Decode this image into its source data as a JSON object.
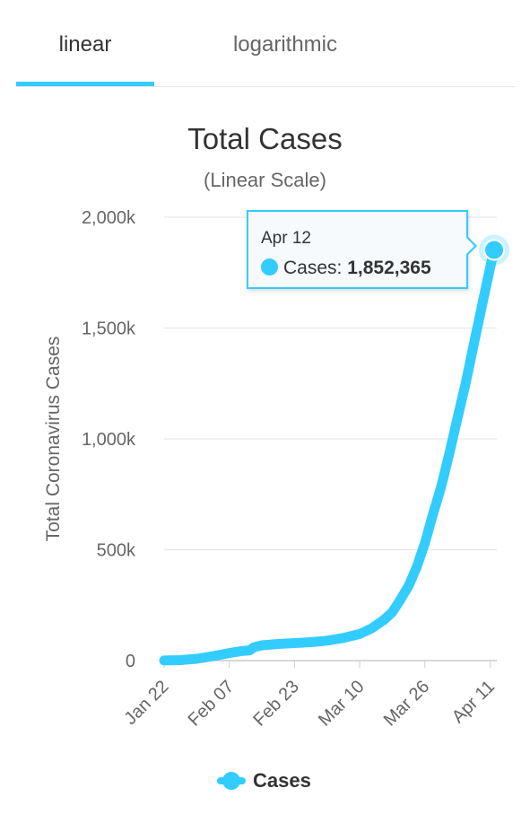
{
  "tabs": [
    {
      "label": "linear",
      "active": true
    },
    {
      "label": "logarithmic",
      "active": false
    }
  ],
  "tooltip": {
    "date": "Apr 12",
    "series_label": "Cases: ",
    "value": "1,852,365"
  },
  "legend": {
    "label": "Cases"
  },
  "colors": {
    "accent": "#33ccff",
    "grid": "#e6e6e6",
    "text": "#333333",
    "muted": "#666666"
  },
  "chart_data": {
    "type": "line",
    "title": "Total Cases",
    "subtitle": "(Linear Scale)",
    "xlabel": "",
    "ylabel": "Total Coronavirus Cases",
    "ylim": [
      0,
      2000000
    ],
    "y_ticks": [
      0,
      500000,
      1000000,
      1500000,
      2000000
    ],
    "y_tick_labels": [
      "0",
      "500k",
      "1,000k",
      "1,500k",
      "2,000k"
    ],
    "x_range": [
      "2020-01-22",
      "2020-04-12"
    ],
    "x_ticks": [
      "2020-01-22",
      "2020-02-07",
      "2020-02-23",
      "2020-03-10",
      "2020-03-26",
      "2020-04-11"
    ],
    "x_tick_labels": [
      "Jan 22",
      "Feb 07",
      "Feb 23",
      "Mar 10",
      "Mar 26",
      "Apr 11"
    ],
    "grid": true,
    "legend_position": "bottom",
    "series": [
      {
        "name": "Cases",
        "color": "#33ccff",
        "points": [
          [
            "2020-01-22",
            580
          ],
          [
            "2020-01-26",
            2100
          ],
          [
            "2020-01-30",
            8200
          ],
          [
            "2020-02-03",
            20000
          ],
          [
            "2020-02-07",
            34000
          ],
          [
            "2020-02-10",
            43000
          ],
          [
            "2020-02-12",
            46000
          ],
          [
            "2020-02-13",
            60000
          ],
          [
            "2020-02-15",
            69000
          ],
          [
            "2020-02-19",
            75000
          ],
          [
            "2020-02-23",
            79000
          ],
          [
            "2020-02-27",
            83000
          ],
          [
            "2020-03-02",
            90000
          ],
          [
            "2020-03-06",
            102000
          ],
          [
            "2020-03-10",
            120000
          ],
          [
            "2020-03-13",
            146000
          ],
          [
            "2020-03-16",
            184000
          ],
          [
            "2020-03-18",
            218000
          ],
          [
            "2020-03-20",
            275000
          ],
          [
            "2020-03-22",
            337000
          ],
          [
            "2020-03-24",
            422000
          ],
          [
            "2020-03-26",
            530000
          ],
          [
            "2020-03-28",
            662000
          ],
          [
            "2020-03-30",
            783000
          ],
          [
            "2020-04-01",
            933000
          ],
          [
            "2020-04-03",
            1093000
          ],
          [
            "2020-04-05",
            1250000
          ],
          [
            "2020-04-07",
            1426000
          ],
          [
            "2020-04-09",
            1600000
          ],
          [
            "2020-04-11",
            1772000
          ],
          [
            "2020-04-12",
            1852365
          ]
        ]
      }
    ],
    "highlight": {
      "date": "2020-04-12",
      "value": 1852365
    }
  }
}
